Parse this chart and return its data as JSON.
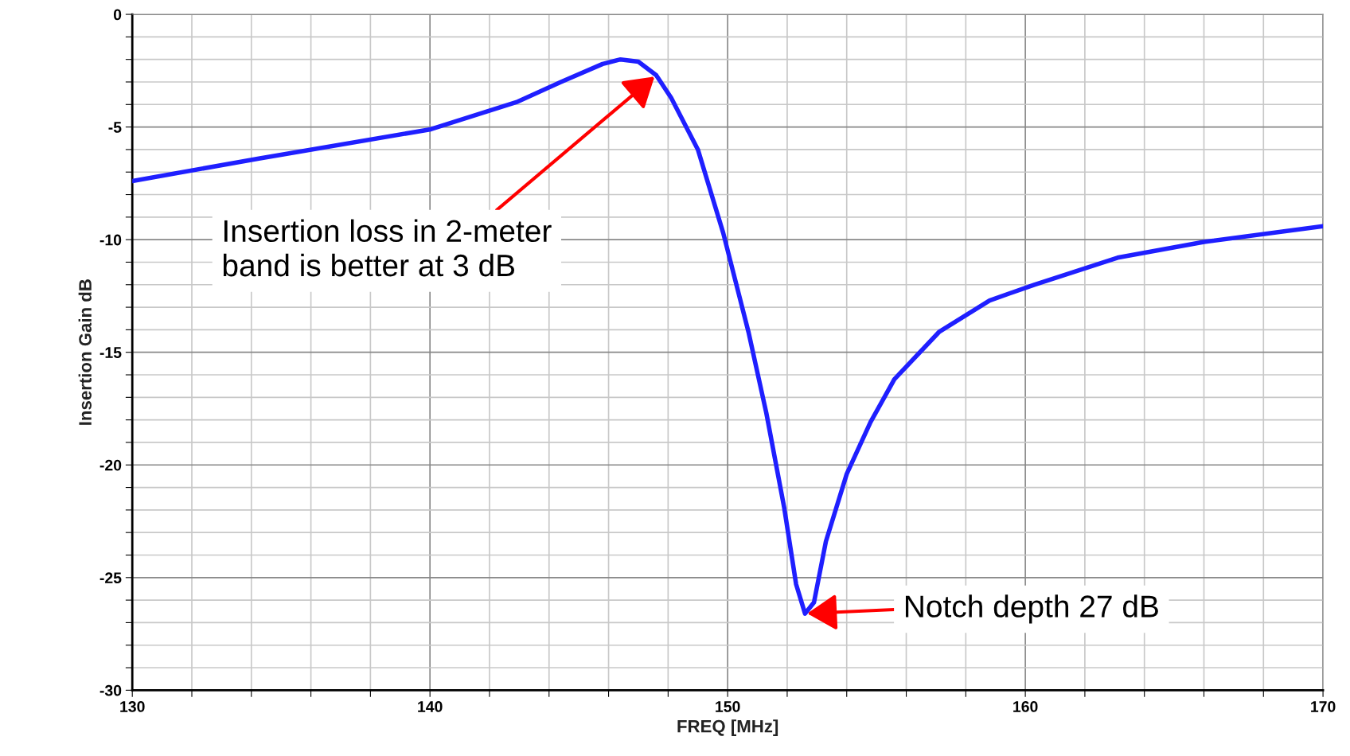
{
  "chart_data": {
    "type": "line",
    "xlabel": "FREQ [MHz]",
    "ylabel": "Insertion Gain dB",
    "x": [
      130,
      134.25,
      140.03,
      142.9,
      144.4,
      145.8,
      146.4,
      147.0,
      147.6,
      148.1,
      149.0,
      149.85,
      150.7,
      151.3,
      151.9,
      152.3,
      152.6,
      152.9,
      153.3,
      154.0,
      154.8,
      155.6,
      157.1,
      158.8,
      160.3,
      163.1,
      166.0,
      170
    ],
    "series": [
      {
        "color": "#1f1fff",
        "values": [
          -7.4,
          -6.4,
          -5.1,
          -3.9,
          -3.0,
          -2.2,
          -2.0,
          -2.1,
          -2.7,
          -3.7,
          -6.0,
          -9.7,
          -14.1,
          -17.7,
          -21.9,
          -25.3,
          -26.6,
          -26.1,
          -23.4,
          -20.4,
          -18.1,
          -16.2,
          -14.1,
          -12.7,
          -12.0,
          -10.8,
          -10.1,
          -9.4
        ]
      }
    ],
    "xlim": [
      130,
      170
    ],
    "ylim": [
      -30,
      0
    ],
    "xticks": [
      130,
      {
        "value": 132,
        "label": null
      },
      {
        "value": 134,
        "label": null
      },
      {
        "value": 136,
        "label": null
      },
      {
        "value": 138,
        "label": null
      },
      140,
      {
        "value": 142,
        "label": null
      },
      {
        "value": 144,
        "label": null
      },
      {
        "value": 146,
        "label": null
      },
      {
        "value": 148,
        "label": null
      },
      150,
      {
        "value": 152,
        "label": null
      },
      {
        "value": 154,
        "label": null
      },
      {
        "value": 156,
        "label": null
      },
      {
        "value": 158,
        "label": null
      },
      160,
      {
        "value": 162,
        "label": null
      },
      {
        "value": 164,
        "label": null
      },
      {
        "value": 166,
        "label": null
      },
      {
        "value": 168,
        "label": null
      },
      170
    ],
    "yticks": [
      -30,
      {
        "value": -29,
        "label": null
      },
      {
        "value": -28,
        "label": null
      },
      {
        "value": -27,
        "label": null
      },
      {
        "value": -26,
        "label": null
      },
      -25,
      {
        "value": -24,
        "label": null
      },
      {
        "value": -23,
        "label": null
      },
      {
        "value": -22,
        "label": null
      },
      {
        "value": -21,
        "label": null
      },
      -20,
      {
        "value": -19,
        "label": null
      },
      {
        "value": -18,
        "label": null
      },
      {
        "value": -17,
        "label": null
      },
      {
        "value": -16,
        "label": null
      },
      -15,
      {
        "value": -14,
        "label": null
      },
      {
        "value": -13,
        "label": null
      },
      {
        "value": -12,
        "label": null
      },
      {
        "value": -11,
        "label": null
      },
      -10,
      {
        "value": -9,
        "label": null
      },
      {
        "value": -8,
        "label": null
      },
      {
        "value": -7,
        "label": null
      },
      {
        "value": -6,
        "label": null
      },
      -5,
      {
        "value": -4,
        "label": null
      },
      {
        "value": -3,
        "label": null
      },
      {
        "value": -2,
        "label": null
      },
      {
        "value": -1,
        "label": null
      },
      0
    ],
    "grid": true,
    "annotations": [
      {
        "text": "Insertion loss in 2-meter\nband is better at 3 dB",
        "x": 147.6,
        "y": -2.7
      },
      {
        "text": "Notch depth 27 dB",
        "x": 152.6,
        "y": -26.6
      }
    ]
  }
}
